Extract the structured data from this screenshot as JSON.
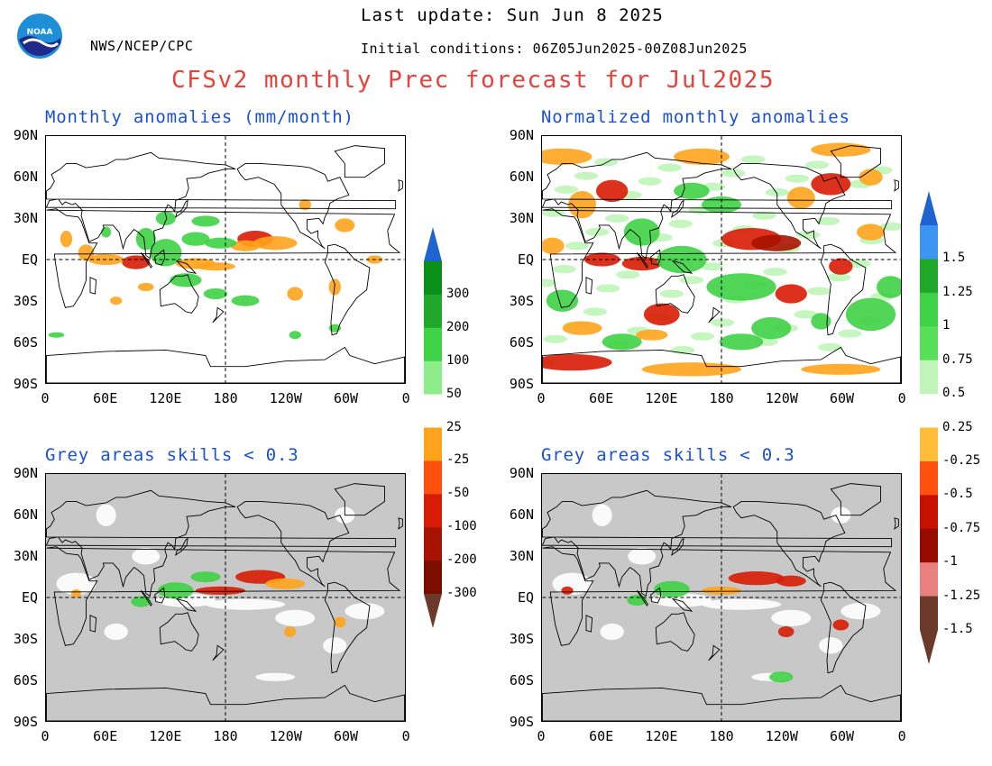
{
  "header": {
    "org": "NWS/NCEP/CPC",
    "last_update": "Last update: Sun Jun 8 2025",
    "initial_conditions": "Initial conditions: 06Z05Jun2025-00Z08Jun2025",
    "title": "CFSv2 monthly Prec forecast for Jul2025"
  },
  "panels": {
    "top_left": "Monthly anomalies (mm/month)",
    "top_right": "Normalized monthly anomalies",
    "bottom_left": "Grey areas skills < 0.3",
    "bottom_right": "Grey areas skills < 0.3"
  },
  "axes": {
    "lat_labels": [
      "90N",
      "60N",
      "30N",
      "EQ",
      "30S",
      "60S",
      "90S"
    ],
    "lon_labels": [
      "0",
      "60E",
      "120E",
      "180",
      "120W",
      "60W",
      "0"
    ]
  },
  "colorbar_mm": {
    "labels": [
      "300",
      "200",
      "100",
      "50",
      "25",
      "-25",
      "-50",
      "-100",
      "-200",
      "-300"
    ],
    "colors": [
      "#1f63d0",
      "#0a8f1a",
      "#1fa82a",
      "#3fd146",
      "#90ec8a",
      "#ffffff",
      "#ffa41c",
      "#ff5010",
      "#d81b04",
      "#a81200",
      "#7a0f00",
      "#6b3a2a"
    ]
  },
  "colorbar_norm": {
    "labels": [
      "1.5",
      "1.25",
      "1",
      "0.75",
      "0.5",
      "0.25",
      "-0.25",
      "-0.5",
      "-0.75",
      "-1",
      "-1.25",
      "-1.5"
    ],
    "colors": [
      "#1f63d0",
      "#3c95f0",
      "#1fa82a",
      "#3fd146",
      "#57df5a",
      "#bff5b8",
      "#ffffff",
      "#ffbd3a",
      "#ff5010",
      "#c81000",
      "#960a00",
      "#e8807e",
      "#6b3a2a"
    ]
  }
}
